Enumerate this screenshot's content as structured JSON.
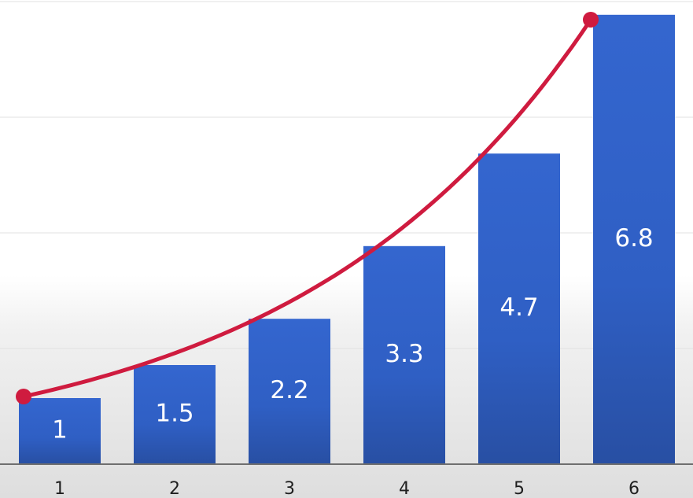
{
  "chart_data": {
    "type": "bar",
    "categories": [
      "1",
      "2",
      "3",
      "4",
      "5",
      "6"
    ],
    "values": [
      1,
      1.5,
      2.2,
      3.3,
      4.7,
      6.8
    ],
    "data_labels": [
      "1",
      "1.5",
      "2.2",
      "3.3",
      "4.7",
      "6.8"
    ],
    "ylim": [
      0,
      7
    ],
    "grid": true,
    "bar_color": "#2f62c6",
    "trend": {
      "type": "exponential-curve",
      "from": [
        1,
        1
      ],
      "to": [
        6,
        6.8
      ],
      "color": "#cf1b3f"
    }
  }
}
